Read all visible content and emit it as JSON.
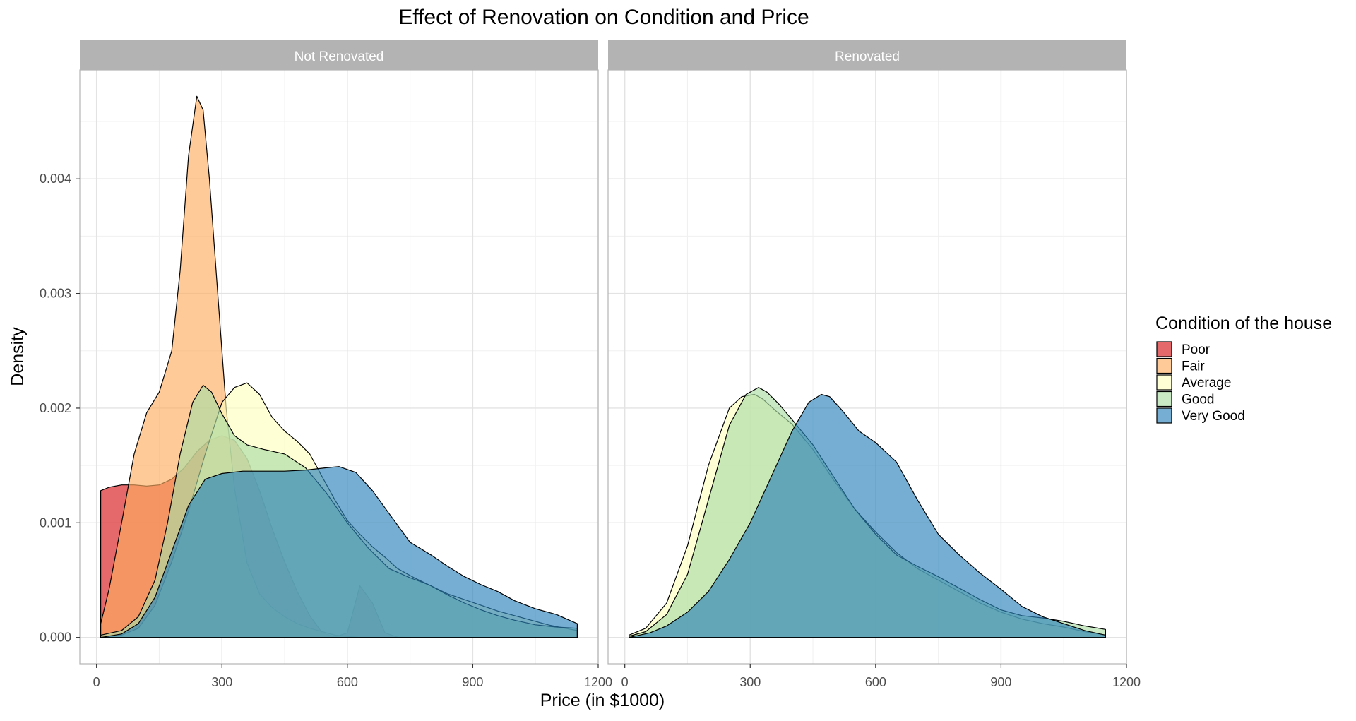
{
  "chart_data": {
    "type": "area",
    "title": "Effect of Renovation on Condition and Price",
    "xlabel": "Price (in $1000)",
    "ylabel": "Density",
    "xlim": [
      -40,
      1200
    ],
    "ylim": [
      -0.00023,
      0.00495
    ],
    "x_ticks": [
      0,
      300,
      600,
      900,
      1200
    ],
    "x_tick_labels": [
      "0",
      "300",
      "600",
      "900",
      "1200"
    ],
    "y_ticks": [
      0,
      0.001,
      0.002,
      0.003,
      0.004
    ],
    "y_tick_labels": [
      "0.000",
      "0.001",
      "0.002",
      "0.003",
      "0.004"
    ],
    "grid": true,
    "legend": {
      "title": "Condition of the house",
      "position": "right",
      "entries": [
        {
          "name": "Poor",
          "color": "#D7191C"
        },
        {
          "name": "Fair",
          "color": "#FDAE61"
        },
        {
          "name": "Average",
          "color": "#FFFFBF"
        },
        {
          "name": "Good",
          "color": "#ABDDA4"
        },
        {
          "name": "Very Good",
          "color": "#2B83BA"
        }
      ]
    },
    "fill_opacity": 0.65,
    "panels": [
      {
        "label": "Not Renovated",
        "series": [
          {
            "name": "Poor",
            "color": "#D7191C",
            "x": [
              10,
              30,
              60,
              90,
              120,
              150,
              180,
              210,
              240,
              270,
              300,
              330,
              360,
              390,
              420,
              450,
              480,
              510,
              540,
              570,
              600,
              630,
              660,
              690,
              720,
              750,
              780,
              810,
              840,
              870,
              900,
              930,
              960,
              990,
              1020,
              1050,
              1080,
              1110,
              1150
            ],
            "y": [
              0.00128,
              0.00131,
              0.00133,
              0.00133,
              0.00132,
              0.00133,
              0.00138,
              0.00148,
              0.00162,
              0.00172,
              0.00176,
              0.00172,
              0.00156,
              0.00128,
              0.00095,
              0.00066,
              0.0004,
              0.00019,
              4e-05,
              3e-06,
              4e-05,
              0.00045,
              0.0003,
              4e-05,
              3e-06,
              0.0,
              0.0,
              0.0,
              0.0,
              0.0,
              0.0,
              0.0,
              0.0,
              0.0,
              0.0,
              0.0,
              0.0,
              0.0,
              0.0
            ]
          },
          {
            "name": "Fair",
            "color": "#FDAE61",
            "x": [
              10,
              30,
              60,
              90,
              120,
              150,
              180,
              200,
              220,
              240,
              255,
              270,
              290,
              310,
              330,
              360,
              390,
              420,
              450,
              480,
              510,
              540,
              570,
              600,
              630,
              660,
              690,
              720,
              760,
              800,
              850,
              900,
              950,
              1000,
              1050,
              1100,
              1150
            ],
            "y": [
              0.00012,
              0.00042,
              0.001,
              0.0016,
              0.00196,
              0.00214,
              0.0025,
              0.0032,
              0.0042,
              0.00472,
              0.0046,
              0.004,
              0.003,
              0.002,
              0.0013,
              0.00065,
              0.00038,
              0.00026,
              0.00018,
              0.00012,
              8e-05,
              5e-05,
              2e-05,
              1e-05,
              0.0,
              0.0,
              0.0,
              0.0,
              0.0,
              0.0,
              0.0,
              0.0,
              0.0,
              0.0,
              0.0,
              0.0,
              0.0
            ]
          },
          {
            "name": "Average",
            "color": "#FFFFBF",
            "x": [
              10,
              60,
              100,
              140,
              180,
              220,
              260,
              300,
              330,
              360,
              390,
              420,
              450,
              480,
              510,
              540,
              570,
              600,
              630,
              660,
              690,
              720,
              760,
              800,
              840,
              880,
              920,
              960,
              1000,
              1040,
              1080,
              1120,
              1150
            ],
            "y": [
              0.0,
              2e-05,
              8e-05,
              0.00028,
              0.00066,
              0.0011,
              0.0016,
              0.00205,
              0.00218,
              0.00222,
              0.00212,
              0.00192,
              0.0018,
              0.00171,
              0.0016,
              0.0014,
              0.0012,
              0.00102,
              0.0009,
              0.00079,
              0.0007,
              0.0006,
              0.00052,
              0.00045,
              0.00038,
              0.00033,
              0.00028,
              0.00023,
              0.00019,
              0.00015,
              0.00011,
              8e-05,
              6e-05
            ]
          },
          {
            "name": "Good",
            "color": "#ABDDA4",
            "x": [
              10,
              60,
              100,
              140,
              170,
              200,
              230,
              255,
              275,
              300,
              330,
              360,
              400,
              450,
              500,
              550,
              600,
              650,
              700,
              750,
              780,
              800,
              840,
              880,
              920,
              960,
              1000,
              1050,
              1100,
              1150
            ],
            "y": [
              2e-05,
              6e-05,
              0.00018,
              0.0005,
              0.001,
              0.0016,
              0.00205,
              0.0022,
              0.00214,
              0.00195,
              0.00176,
              0.00168,
              0.00164,
              0.0016,
              0.00148,
              0.00126,
              0.001,
              0.00078,
              0.0006,
              0.00052,
              0.00048,
              0.00045,
              0.00037,
              0.0003,
              0.00024,
              0.00019,
              0.00015,
              0.00011,
              9e-05,
              8e-05
            ]
          },
          {
            "name": "Very Good",
            "color": "#2B83BA",
            "x": [
              10,
              60,
              100,
              140,
              180,
              220,
              260,
              300,
              350,
              400,
              450,
              500,
              550,
              580,
              620,
              660,
              700,
              750,
              800,
              840,
              880,
              920,
              960,
              1000,
              1050,
              1100,
              1150
            ],
            "y": [
              0.0,
              3e-05,
              0.00012,
              0.00035,
              0.00075,
              0.00115,
              0.00138,
              0.00143,
              0.00145,
              0.00145,
              0.00145,
              0.00146,
              0.00148,
              0.00149,
              0.00144,
              0.00128,
              0.00108,
              0.00083,
              0.00072,
              0.00062,
              0.00053,
              0.00046,
              0.0004,
              0.00032,
              0.00025,
              0.0002,
              0.00012
            ]
          }
        ]
      },
      {
        "label": "Renovated",
        "series": [
          {
            "name": "Average",
            "color": "#FFFFBF",
            "x": [
              10,
              50,
              100,
              150,
              200,
              250,
              280,
              310,
              330,
              360,
              400,
              450,
              500,
              550,
              600,
              650,
              700,
              750,
              800,
              850,
              900,
              950,
              1000,
              1050,
              1100,
              1150
            ],
            "y": [
              2e-05,
              8e-05,
              0.0003,
              0.0008,
              0.0015,
              0.002,
              0.0021,
              0.00212,
              0.00208,
              0.00198,
              0.00186,
              0.00164,
              0.00137,
              0.00112,
              0.00092,
              0.00074,
              0.0006,
              0.0005,
              0.0004,
              0.0003,
              0.00022,
              0.00016,
              0.00012,
              9e-05,
              5e-05,
              2e-05
            ]
          },
          {
            "name": "Good",
            "color": "#ABDDA4",
            "x": [
              10,
              50,
              100,
              150,
              200,
              250,
              290,
              320,
              340,
              370,
              400,
              450,
              500,
              550,
              600,
              650,
              700,
              750,
              800,
              850,
              900,
              950,
              1000,
              1050,
              1100,
              1150
            ],
            "y": [
              1e-05,
              5e-05,
              0.0002,
              0.00055,
              0.0012,
              0.00185,
              0.00212,
              0.00218,
              0.00214,
              0.00203,
              0.0019,
              0.00168,
              0.0014,
              0.00112,
              0.0009,
              0.00072,
              0.00062,
              0.00053,
              0.00043,
              0.00033,
              0.00024,
              0.00019,
              0.00017,
              0.00014,
              0.0001,
              7e-05
            ]
          },
          {
            "name": "Very Good",
            "color": "#2B83BA",
            "x": [
              10,
              60,
              100,
              150,
              200,
              250,
              300,
              350,
              400,
              440,
              470,
              490,
              520,
              560,
              600,
              650,
              700,
              750,
              800,
              850,
              900,
              950,
              1000,
              1050,
              1100,
              1150
            ],
            "y": [
              0.0,
              4e-05,
              0.0001,
              0.00022,
              0.0004,
              0.00068,
              0.001,
              0.0014,
              0.0018,
              0.00205,
              0.00212,
              0.0021,
              0.00198,
              0.0018,
              0.0017,
              0.00153,
              0.0012,
              0.0009,
              0.00072,
              0.00056,
              0.00042,
              0.00027,
              0.00018,
              0.00012,
              6e-05,
              2e-05
            ]
          }
        ]
      }
    ]
  }
}
